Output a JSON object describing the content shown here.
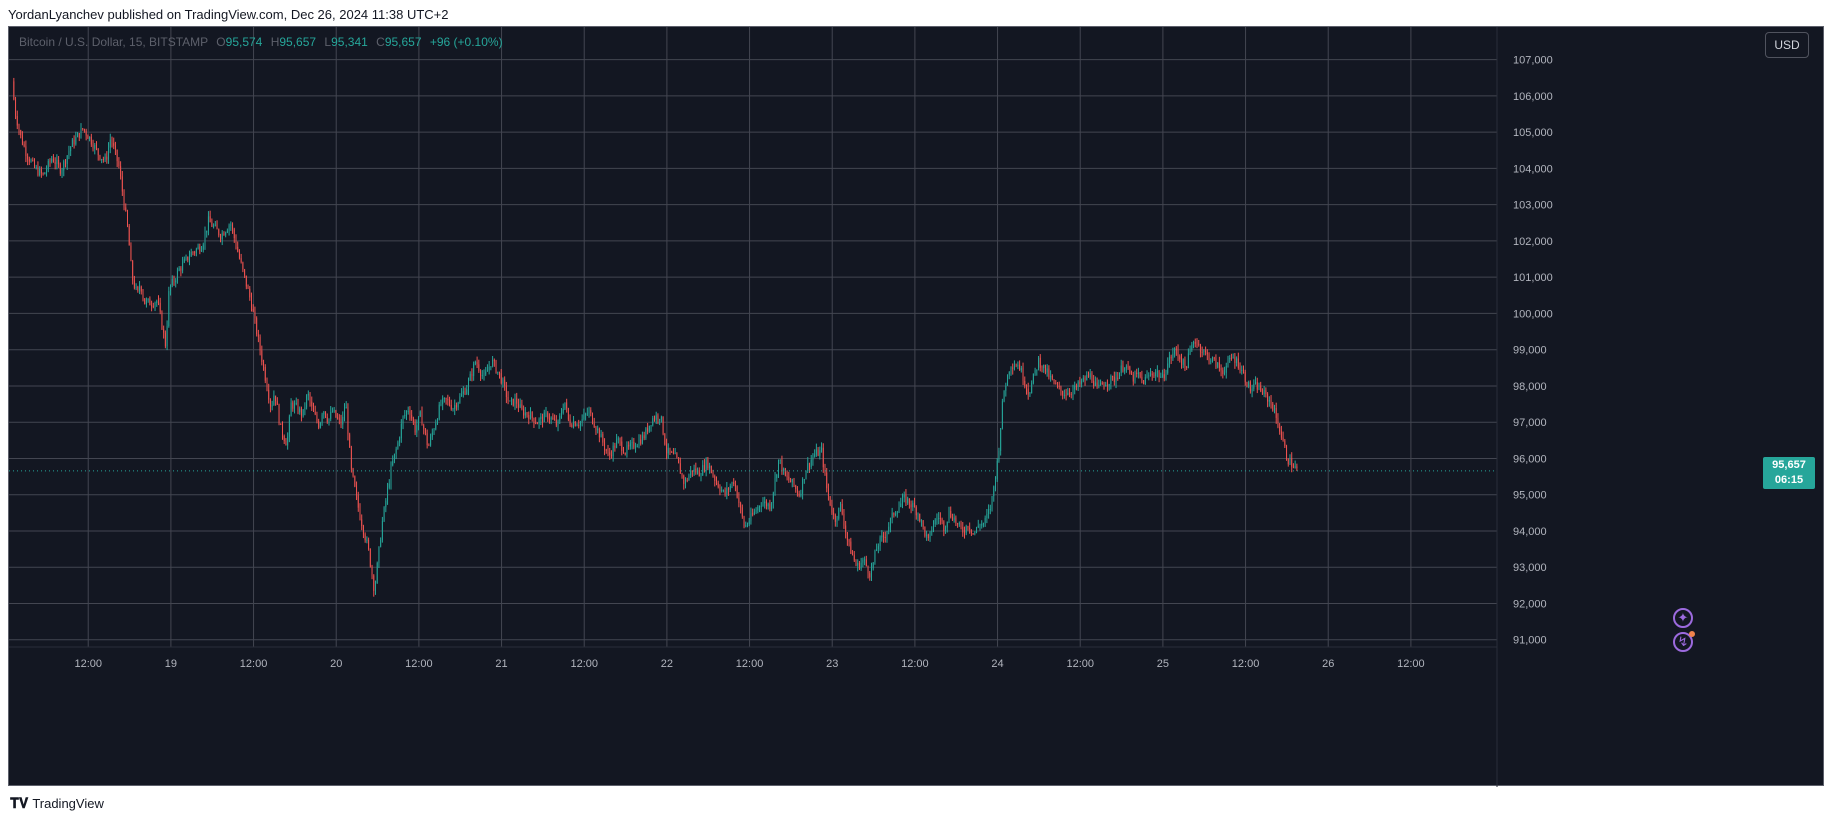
{
  "publisher": "YordanLyanchev published on TradingView.com, Dec 26, 2024 11:38 UTC+2",
  "footer_brand": "TradingView",
  "colors": {
    "background": "#131722",
    "grid": "#434651",
    "up": "#26a69a",
    "down": "#ef5350",
    "axis_text": "#b2b5be"
  },
  "legend": {
    "symbol": "Bitcoin / U.S. Dollar, 15, BITSTAMP",
    "o_label": "O",
    "o": "95,574",
    "h_label": "H",
    "h": "95,657",
    "l_label": "L",
    "l": "95,341",
    "c_label": "C",
    "c": "95,657",
    "change": "+96 (+0.10%)"
  },
  "currency_button": "USD",
  "last_price": {
    "price": "95,657",
    "countdown": "06:15"
  },
  "icons": [
    "sparkle-icon",
    "lightning-icon"
  ],
  "chart_data": {
    "type": "candlestick",
    "symbol": "Bitcoin / U.S. Dollar",
    "interval": "15",
    "exchange": "BITSTAMP",
    "y_tick_labels": [
      "91,000",
      "92,000",
      "93,000",
      "94,000",
      "95,000",
      "96,000",
      "97,000",
      "98,000",
      "99,000",
      "100,000",
      "101,000",
      "102,000",
      "103,000",
      "104,000",
      "105,000",
      "106,000",
      "107,000"
    ],
    "x_tick_labels": [
      "12:00",
      "19",
      "12:00",
      "20",
      "12:00",
      "21",
      "12:00",
      "22",
      "12:00",
      "23",
      "12:00",
      "24",
      "12:00",
      "25",
      "12:00",
      "26",
      "12:00"
    ],
    "x_ticks_hours": [
      12,
      24,
      36,
      48,
      60,
      72,
      84,
      96,
      108,
      120,
      132,
      144,
      156,
      168,
      180,
      192,
      204
    ],
    "ylim": [
      90800,
      107900
    ],
    "xlim_hours": [
      0.5,
      216.5
    ],
    "grid": true,
    "last_price": 95657,
    "path_hours": [
      1.2,
      1.6,
      2.4,
      3.3,
      4.5,
      5.7,
      7.0,
      8.3,
      9.8,
      11.5,
      12.6,
      13.7,
      14.8,
      15.5,
      16.7,
      18.0,
      18.6,
      19.4,
      19.8,
      20.4,
      21.5,
      22.3,
      23.5,
      24.0,
      24.7,
      25.4,
      26.4,
      27.1,
      27.9,
      28.8,
      29.7,
      30.4,
      31.5,
      32.9,
      34.5,
      35.9,
      36.9,
      37.9,
      38.8,
      39.3,
      40.2,
      41.1,
      41.7,
      42.5,
      43.4,
      44.1,
      44.8,
      45.8,
      46.3,
      47.1,
      47.7,
      48.5,
      49.1,
      49.6,
      50.4,
      51.6,
      52.9,
      53.8,
      54.9,
      56.2,
      57.3,
      57.9,
      58.8,
      59.7,
      60.5,
      61.6,
      62.8,
      63.4,
      64.3,
      65.2,
      66.3,
      67.3,
      68.5,
      69.7,
      70.8,
      72.1,
      73.4,
      74.3,
      75.2,
      76.3,
      77.4,
      78.9,
      80.4,
      81.4,
      82.0,
      83.7,
      84.9,
      86.4,
      87.8,
      89.1,
      90.2,
      91.6,
      92.9,
      94.1,
      95.3,
      96.2,
      97.6,
      98.8,
      99.9,
      101.0,
      102.1,
      103.3,
      104.6,
      106.0,
      107.5,
      108.6,
      109.9,
      111.3,
      112.5,
      113.4,
      114.5,
      115.5,
      116.4,
      117.6,
      118.7,
      119.5,
      120.6,
      121.5,
      122.5,
      123.8,
      124.8,
      125.8,
      126.8,
      127.9,
      129.2,
      130.8,
      131.9,
      132.7,
      133.4,
      134.2,
      134.9,
      135.7,
      136.5,
      137.2,
      137.8,
      138.6,
      139.3,
      140.0,
      140.8,
      141.6,
      142.3,
      143.3,
      144.3,
      145.1,
      146.1,
      147.3,
      148.8,
      150.2,
      151.3,
      152.6,
      153.8,
      155.4,
      157.0,
      157.8,
      158.7,
      159.8,
      161.3,
      162.7,
      163.8,
      164.7,
      165.3,
      166.3,
      167.3,
      168.2,
      169.1,
      170.1,
      171.5,
      172.8,
      174.3,
      175.5,
      176.9,
      178.4,
      179.3,
      180.0,
      180.9,
      181.9,
      182.8,
      184.1,
      185.2,
      186.3,
      187.8,
      189.1,
      190.3,
      191.1,
      191.9,
      192.8,
      193.5,
      194.4,
      195.3,
      196.2,
      197.1,
      198.0,
      198.7,
      199.4,
      200.2,
      200.9,
      201.4,
      201.9,
      202.5,
      203.2
    ],
    "path_values": [
      106400,
      105600,
      104900,
      104400,
      104000,
      103800,
      104300,
      103950,
      104650,
      105100,
      104800,
      104400,
      104200,
      104850,
      104050,
      102300,
      101000,
      100500,
      100850,
      100300,
      100300,
      100350,
      99100,
      100700,
      100900,
      101200,
      101450,
      101650,
      101750,
      101900,
      102550,
      102400,
      102150,
      102500,
      101300,
      100300,
      99300,
      98300,
      97400,
      97850,
      96800,
      96400,
      97500,
      97400,
      97200,
      97800,
      97300,
      96900,
      97400,
      97050,
      97300,
      97050,
      96950,
      97600,
      95700,
      94500,
      93500,
      92350,
      94200,
      95700,
      96500,
      97100,
      97400,
      96800,
      97200,
      96300,
      97100,
      97500,
      97600,
      97400,
      97700,
      98000,
      98700,
      98200,
      98700,
      98250,
      97500,
      97600,
      97300,
      97200,
      97000,
      97200,
      96900,
      97600,
      97000,
      97000,
      97300,
      96700,
      96050,
      96500,
      96200,
      96400,
      96600,
      97100,
      97200,
      96200,
      96000,
      95300,
      95700,
      95600,
      95900,
      95400,
      95000,
      95400,
      94100,
      94400,
      94800,
      94700,
      96000,
      95500,
      95300,
      95000,
      95700,
      96100,
      96200,
      95100,
      94300,
      94700,
      93700,
      93000,
      93200,
      92800,
      93600,
      93900,
      94500,
      94900,
      94700,
      94500,
      94100,
      93700,
      94200,
      94400,
      94100,
      94500,
      94400,
      94100,
      94000,
      94200,
      93900,
      94200,
      94200,
      94700,
      96000,
      97800,
      98600,
      98600,
      97800,
      98700,
      98400,
      98000,
      97800,
      97900,
      98200,
      98300,
      97900,
      98100,
      98200,
      98600,
      98200,
      98300,
      98100,
      98300,
      98400,
      98200,
      98700,
      99000,
      98500,
      99300,
      98900,
      98700,
      98400,
      98800,
      98600,
      98300,
      97900,
      98000,
      97800,
      97500,
      96800,
      96000,
      95660
    ]
  }
}
